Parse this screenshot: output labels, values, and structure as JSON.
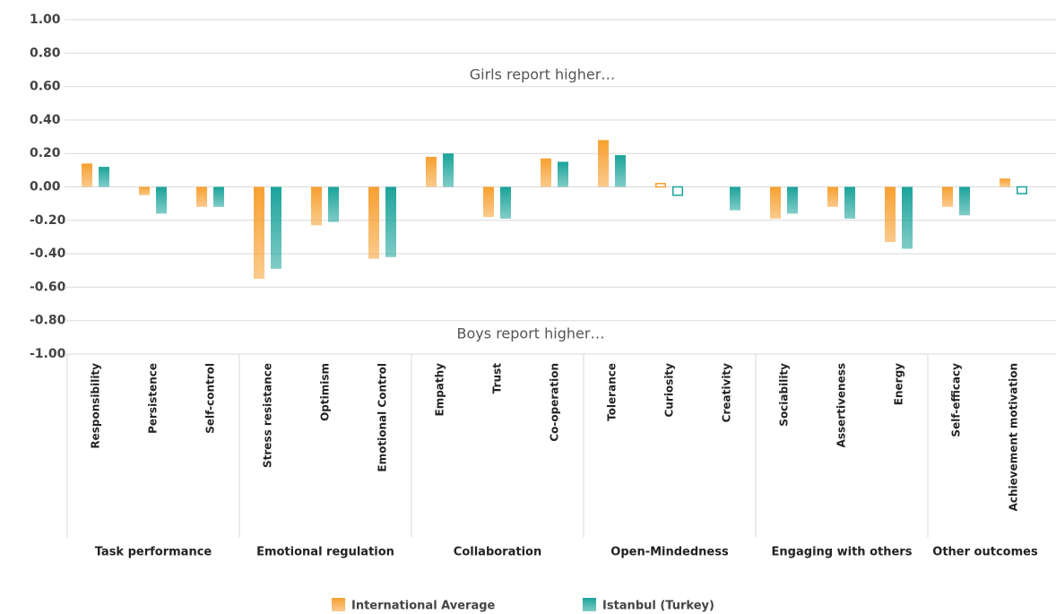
{
  "chart_data": {
    "type": "bar",
    "annotations": [
      "Girls report higher…",
      "Boys report higher…"
    ],
    "groups": [
      {
        "name": "Task performance",
        "categories": [
          "Responsibility",
          "Persistence",
          "Self-control"
        ]
      },
      {
        "name": "Emotional regulation",
        "categories": [
          "Stress resistance",
          "Optimism",
          "Emotional Control"
        ]
      },
      {
        "name": "Collaboration",
        "categories": [
          "Empathy",
          "Trust",
          "Co-operation"
        ]
      },
      {
        "name": "Open-Mindedness",
        "categories": [
          "Tolerance",
          "Curiosity",
          "Creativity"
        ]
      },
      {
        "name": "Engaging with others",
        "categories": [
          "Sociability",
          "Assertiveness",
          "Energy"
        ]
      },
      {
        "name": "Other outcomes",
        "categories": [
          "Self-efficacy",
          "Achievement motivation"
        ]
      }
    ],
    "series": [
      {
        "name": "International Average",
        "color": "#f7a030",
        "values": [
          0.14,
          -0.05,
          -0.12,
          -0.55,
          -0.23,
          -0.43,
          0.18,
          -0.18,
          0.17,
          0.28,
          0.02,
          null,
          -0.19,
          -0.12,
          -0.33,
          -0.12,
          0.05
        ],
        "filled": [
          true,
          true,
          true,
          true,
          true,
          true,
          true,
          true,
          true,
          true,
          false,
          true,
          true,
          true,
          true,
          true,
          true
        ]
      },
      {
        "name": "Istanbul (Turkey)",
        "color": "#1aa39a",
        "values": [
          0.12,
          -0.16,
          -0.12,
          -0.49,
          -0.21,
          -0.42,
          0.2,
          -0.19,
          0.15,
          0.19,
          -0.05,
          -0.14,
          -0.16,
          -0.19,
          -0.37,
          -0.17,
          -0.04
        ],
        "filled": [
          true,
          true,
          true,
          true,
          true,
          true,
          true,
          true,
          true,
          true,
          false,
          true,
          true,
          true,
          true,
          true,
          false
        ]
      }
    ],
    "ylim": [
      -1,
      1
    ],
    "yticks": [
      {
        "value": 1,
        "label": "1.00"
      },
      {
        "value": 0.8,
        "label": "0.80"
      },
      {
        "value": 0.6,
        "label": "0.60"
      },
      {
        "value": 0.4,
        "label": "0.40"
      },
      {
        "value": 0.2,
        "label": "0.20"
      },
      {
        "value": 0,
        "label": "0.00"
      },
      {
        "value": -0.2,
        "label": "-0.20"
      },
      {
        "value": -0.4,
        "label": "-0.40"
      },
      {
        "value": -0.6,
        "label": "-0.60"
      },
      {
        "value": -0.8,
        "label": "-0.80"
      },
      {
        "value": -1,
        "label": "-1.00"
      }
    ],
    "grid": true
  }
}
